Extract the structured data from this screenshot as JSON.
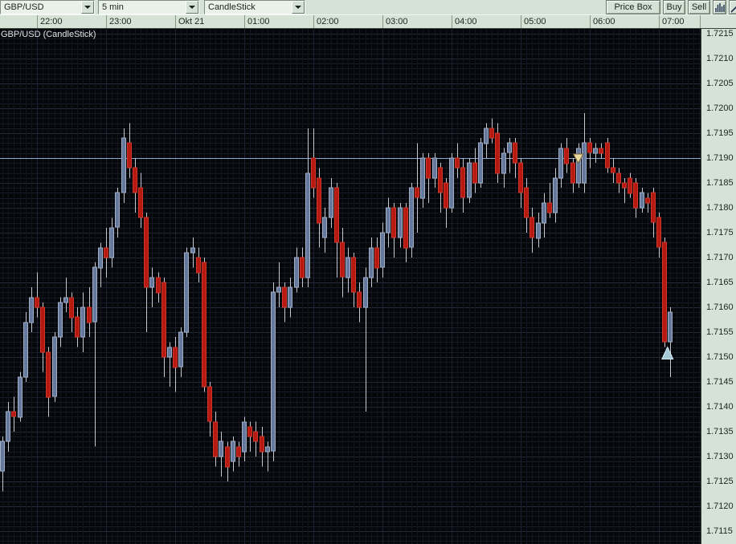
{
  "toolbar": {
    "symbol_value": "GBP/USD",
    "timeframe_value": "5 min",
    "charttype_value": "CandleStick",
    "price_box_label": "Price Box",
    "buy_label": "Buy",
    "sell_label": "Sell",
    "icon_buttons": [
      "volume-bars-icon",
      "trendline-icon"
    ]
  },
  "chart": {
    "title": "GBP/USD (CandleStick)"
  },
  "colors": {
    "panel_bg": "#d6e2d6",
    "chart_bg": "#05070b",
    "grid_minor": "#161b25",
    "grid_major": "#242c3c",
    "grid_vertical": "#11151e",
    "grid_vertical_hour": "#1b2231",
    "bull_fill": "#64799c",
    "bull_stroke": "#a2aec6",
    "bear_fill": "#b5190f",
    "bear_stroke": "#d2362a",
    "wick": "#c4c8d0",
    "price_line": "#8ea9d4",
    "sell_marker_fill": "#ead9a1",
    "sell_marker_stroke": "#7a6830",
    "buy_marker_fill": "#a3c8d6",
    "buy_marker_stroke": "#d5ecf2",
    "axis_text": "#1c261c",
    "title_text": "#dfe2df"
  },
  "chart_data": {
    "type": "candlestick",
    "title": "GBP/USD (CandleStick)",
    "instrument": "GBP/USD",
    "interval": "5 min",
    "horizontal_line_price": 1.719,
    "y_axis": {
      "max": 1.7215,
      "min": 1.7115,
      "tick_step": 0.0005,
      "decimals": 4
    },
    "x_labels": [
      {
        "index": 6,
        "label": "22:00"
      },
      {
        "index": 18,
        "label": "23:00"
      },
      {
        "index": 30,
        "label": "Okt 21"
      },
      {
        "index": 42,
        "label": "01:00"
      },
      {
        "index": 54,
        "label": "02:00"
      },
      {
        "index": 66,
        "label": "03:00"
      },
      {
        "index": 78,
        "label": "04:00"
      },
      {
        "index": 90,
        "label": "05:00"
      },
      {
        "index": 102,
        "label": "06:00"
      },
      {
        "index": 114,
        "label": "07:00"
      }
    ],
    "markers": [
      {
        "type": "sell-signal",
        "shape": "triangle-down",
        "index": 100,
        "price": 1.7189
      },
      {
        "type": "buy-signal",
        "shape": "triangle-up",
        "index": 115.5,
        "price": 1.7152
      }
    ],
    "columns": [
      "time",
      "open",
      "high",
      "low",
      "close"
    ],
    "candles": [
      [
        "21:30",
        1.7127,
        1.7134,
        1.7123,
        1.7133
      ],
      [
        "21:35",
        1.7133,
        1.7141,
        1.7131,
        1.7139
      ],
      [
        "21:40",
        1.7139,
        1.7142,
        1.7135,
        1.7138
      ],
      [
        "21:45",
        1.7138,
        1.7147,
        1.7137,
        1.7146
      ],
      [
        "21:50",
        1.7146,
        1.7159,
        1.7145,
        1.7157
      ],
      [
        "21:55",
        1.7157,
        1.7164,
        1.7155,
        1.7162
      ],
      [
        "22:00",
        1.7162,
        1.7167,
        1.7158,
        1.716
      ],
      [
        "22:05",
        1.716,
        1.7161,
        1.7147,
        1.7151
      ],
      [
        "22:10",
        1.7151,
        1.7152,
        1.7138,
        1.7142
      ],
      [
        "22:15",
        1.7142,
        1.7155,
        1.7141,
        1.7154
      ],
      [
        "22:20",
        1.7154,
        1.7162,
        1.7152,
        1.7161
      ],
      [
        "22:25",
        1.7161,
        1.7166,
        1.7159,
        1.7162
      ],
      [
        "22:30",
        1.7162,
        1.7163,
        1.7155,
        1.7158
      ],
      [
        "22:35",
        1.7158,
        1.716,
        1.7152,
        1.7154
      ],
      [
        "22:40",
        1.7154,
        1.7163,
        1.7151,
        1.716
      ],
      [
        "22:45",
        1.716,
        1.7164,
        1.7154,
        1.7157
      ],
      [
        "22:50",
        1.7157,
        1.7169,
        1.7132,
        1.7168
      ],
      [
        "22:55",
        1.7168,
        1.7173,
        1.7164,
        1.7172
      ],
      [
        "23:00",
        1.7172,
        1.7176,
        1.7166,
        1.717
      ],
      [
        "23:05",
        1.717,
        1.7178,
        1.7168,
        1.7176
      ],
      [
        "23:10",
        1.7176,
        1.7184,
        1.7174,
        1.7183
      ],
      [
        "23:15",
        1.7183,
        1.7196,
        1.7181,
        1.7194
      ],
      [
        "23:20",
        1.7193,
        1.7197,
        1.7186,
        1.7188
      ],
      [
        "23:25",
        1.7188,
        1.719,
        1.7179,
        1.7183
      ],
      [
        "23:30",
        1.7184,
        1.7187,
        1.7176,
        1.7178
      ],
      [
        "23:35",
        1.7178,
        1.7179,
        1.7155,
        1.7164
      ],
      [
        "23:40",
        1.7164,
        1.7168,
        1.716,
        1.7166
      ],
      [
        "23:45",
        1.7166,
        1.7167,
        1.7161,
        1.7163
      ],
      [
        "23:50",
        1.7165,
        1.7166,
        1.7146,
        1.715
      ],
      [
        "23:55",
        1.715,
        1.7153,
        1.7144,
        1.7152
      ],
      [
        "00:00",
        1.7152,
        1.7154,
        1.7143,
        1.7148
      ],
      [
        "00:05",
        1.7148,
        1.7156,
        1.7146,
        1.7155
      ],
      [
        "00:10",
        1.7155,
        1.7172,
        1.7154,
        1.7171
      ],
      [
        "00:15",
        1.7171,
        1.7174,
        1.7168,
        1.7172
      ],
      [
        "00:20",
        1.717,
        1.7172,
        1.7165,
        1.7167
      ],
      [
        "00:25",
        1.7169,
        1.717,
        1.7143,
        1.7144
      ],
      [
        "00:30",
        1.7144,
        1.7145,
        1.7134,
        1.7137
      ],
      [
        "00:35",
        1.7137,
        1.7139,
        1.7128,
        1.713
      ],
      [
        "00:40",
        1.713,
        1.7135,
        1.7126,
        1.7133
      ],
      [
        "00:45",
        1.7132,
        1.7133,
        1.7125,
        1.7128
      ],
      [
        "00:50",
        1.7129,
        1.7134,
        1.7127,
        1.7133
      ],
      [
        "00:55",
        1.7132,
        1.7133,
        1.7128,
        1.713
      ],
      [
        "01:00",
        1.7131,
        1.7138,
        1.7129,
        1.7137
      ],
      [
        "01:05",
        1.7136,
        1.7137,
        1.7131,
        1.7134
      ],
      [
        "01:10",
        1.7135,
        1.7137,
        1.713,
        1.7133
      ],
      [
        "01:15",
        1.7134,
        1.7136,
        1.7128,
        1.7131
      ],
      [
        "01:20",
        1.7131,
        1.7133,
        1.7127,
        1.7132
      ],
      [
        "01:25",
        1.7131,
        1.7165,
        1.7129,
        1.7163
      ],
      [
        "01:30",
        1.7163,
        1.7169,
        1.716,
        1.7164
      ],
      [
        "01:35",
        1.7164,
        1.7165,
        1.7157,
        1.716
      ],
      [
        "01:40",
        1.716,
        1.7166,
        1.7158,
        1.7164
      ],
      [
        "01:45",
        1.7164,
        1.7172,
        1.7163,
        1.717
      ],
      [
        "01:50",
        1.717,
        1.7172,
        1.7164,
        1.7166
      ],
      [
        "01:55",
        1.7166,
        1.7196,
        1.7164,
        1.7187
      ],
      [
        "02:00",
        1.719,
        1.7196,
        1.7182,
        1.7184
      ],
      [
        "02:05",
        1.7186,
        1.7188,
        1.7172,
        1.7177
      ],
      [
        "02:10",
        1.7174,
        1.718,
        1.7171,
        1.7178
      ],
      [
        "02:15",
        1.7178,
        1.7186,
        1.7176,
        1.7184
      ],
      [
        "02:20",
        1.7184,
        1.7185,
        1.7166,
        1.7173
      ],
      [
        "02:25",
        1.7173,
        1.7176,
        1.7162,
        1.7166
      ],
      [
        "02:30",
        1.7166,
        1.7172,
        1.7163,
        1.717
      ],
      [
        "02:35",
        1.717,
        1.7171,
        1.716,
        1.7163
      ],
      [
        "02:40",
        1.7163,
        1.7165,
        1.7157,
        1.716
      ],
      [
        "02:45",
        1.716,
        1.7168,
        1.7139,
        1.7166
      ],
      [
        "02:50",
        1.7166,
        1.7174,
        1.7164,
        1.7172
      ],
      [
        "02:55",
        1.7172,
        1.7174,
        1.7165,
        1.7168
      ],
      [
        "03:00",
        1.7168,
        1.7177,
        1.7166,
        1.7175
      ],
      [
        "03:05",
        1.7175,
        1.7182,
        1.7172,
        1.718
      ],
      [
        "03:10",
        1.718,
        1.7181,
        1.717,
        1.7174
      ],
      [
        "03:15",
        1.7174,
        1.7181,
        1.7172,
        1.718
      ],
      [
        "03:20",
        1.718,
        1.7181,
        1.7169,
        1.7172
      ],
      [
        "03:25",
        1.7172,
        1.7185,
        1.717,
        1.7184
      ],
      [
        "03:30",
        1.7184,
        1.7193,
        1.7175,
        1.7182
      ],
      [
        "03:35",
        1.7182,
        1.7191,
        1.718,
        1.719
      ],
      [
        "03:40",
        1.719,
        1.7191,
        1.7181,
        1.7186
      ],
      [
        "03:45",
        1.7186,
        1.7191,
        1.7184,
        1.719
      ],
      [
        "03:50",
        1.7188,
        1.7189,
        1.7179,
        1.7183
      ],
      [
        "03:55",
        1.7185,
        1.7186,
        1.7176,
        1.718
      ],
      [
        "04:00",
        1.718,
        1.7191,
        1.7179,
        1.719
      ],
      [
        "04:05",
        1.719,
        1.7193,
        1.7186,
        1.7188
      ],
      [
        "04:10",
        1.7188,
        1.719,
        1.7179,
        1.7182
      ],
      [
        "04:15",
        1.7182,
        1.719,
        1.7181,
        1.7189
      ],
      [
        "04:20",
        1.7189,
        1.7192,
        1.7183,
        1.7185
      ],
      [
        "04:25",
        1.7185,
        1.7194,
        1.7184,
        1.7193
      ],
      [
        "04:30",
        1.7193,
        1.7197,
        1.719,
        1.7196
      ],
      [
        "04:35",
        1.7196,
        1.7198,
        1.7193,
        1.7194
      ],
      [
        "04:40",
        1.7195,
        1.7197,
        1.7185,
        1.7187
      ],
      [
        "04:45",
        1.7187,
        1.7192,
        1.7184,
        1.7191
      ],
      [
        "04:50",
        1.7191,
        1.7194,
        1.7187,
        1.7193
      ],
      [
        "04:55",
        1.7193,
        1.7194,
        1.7186,
        1.7189
      ],
      [
        "05:00",
        1.7189,
        1.719,
        1.718,
        1.7183
      ],
      [
        "05:05",
        1.7184,
        1.7186,
        1.7175,
        1.7178
      ],
      [
        "05:10",
        1.7178,
        1.718,
        1.7171,
        1.7174
      ],
      [
        "05:15",
        1.7174,
        1.7179,
        1.7172,
        1.7177
      ],
      [
        "05:20",
        1.7177,
        1.7183,
        1.7174,
        1.7181
      ],
      [
        "05:25",
        1.7181,
        1.7185,
        1.7178,
        1.7179
      ],
      [
        "05:30",
        1.7179,
        1.7188,
        1.7177,
        1.7186
      ],
      [
        "05:35",
        1.7186,
        1.7193,
        1.7184,
        1.7192
      ],
      [
        "05:40",
        1.7192,
        1.7194,
        1.7187,
        1.7189
      ],
      [
        "05:45",
        1.7189,
        1.719,
        1.7183,
        1.7185
      ],
      [
        "05:50",
        1.7185,
        1.7193,
        1.7184,
        1.7192
      ],
      [
        "05:55",
        1.7185,
        1.7199,
        1.7183,
        1.7193
      ],
      [
        "06:00",
        1.7193,
        1.7194,
        1.7188,
        1.7191
      ],
      [
        "06:05",
        1.7191,
        1.7193,
        1.7189,
        1.7192
      ],
      [
        "06:10",
        1.7192,
        1.7193,
        1.719,
        1.7191
      ],
      [
        "06:15",
        1.7193,
        1.7194,
        1.7187,
        1.7188
      ],
      [
        "06:20",
        1.7188,
        1.719,
        1.7185,
        1.7187
      ],
      [
        "06:25",
        1.7187,
        1.7188,
        1.7183,
        1.7185
      ],
      [
        "06:30",
        1.7185,
        1.7186,
        1.7181,
        1.7184
      ],
      [
        "06:35",
        1.7186,
        1.7187,
        1.7182,
        1.7183
      ],
      [
        "06:40",
        1.7185,
        1.7186,
        1.7178,
        1.718
      ],
      [
        "06:45",
        1.718,
        1.7184,
        1.7179,
        1.7183
      ],
      [
        "06:50",
        1.7182,
        1.7183,
        1.7179,
        1.7181
      ],
      [
        "06:55",
        1.7183,
        1.7184,
        1.7174,
        1.7177
      ],
      [
        "07:00",
        1.7178,
        1.7179,
        1.717,
        1.7172
      ],
      [
        "07:05",
        1.7173,
        1.7174,
        1.7152,
        1.7153
      ],
      [
        "07:10",
        1.7153,
        1.716,
        1.7146,
        1.7159
      ]
    ]
  }
}
